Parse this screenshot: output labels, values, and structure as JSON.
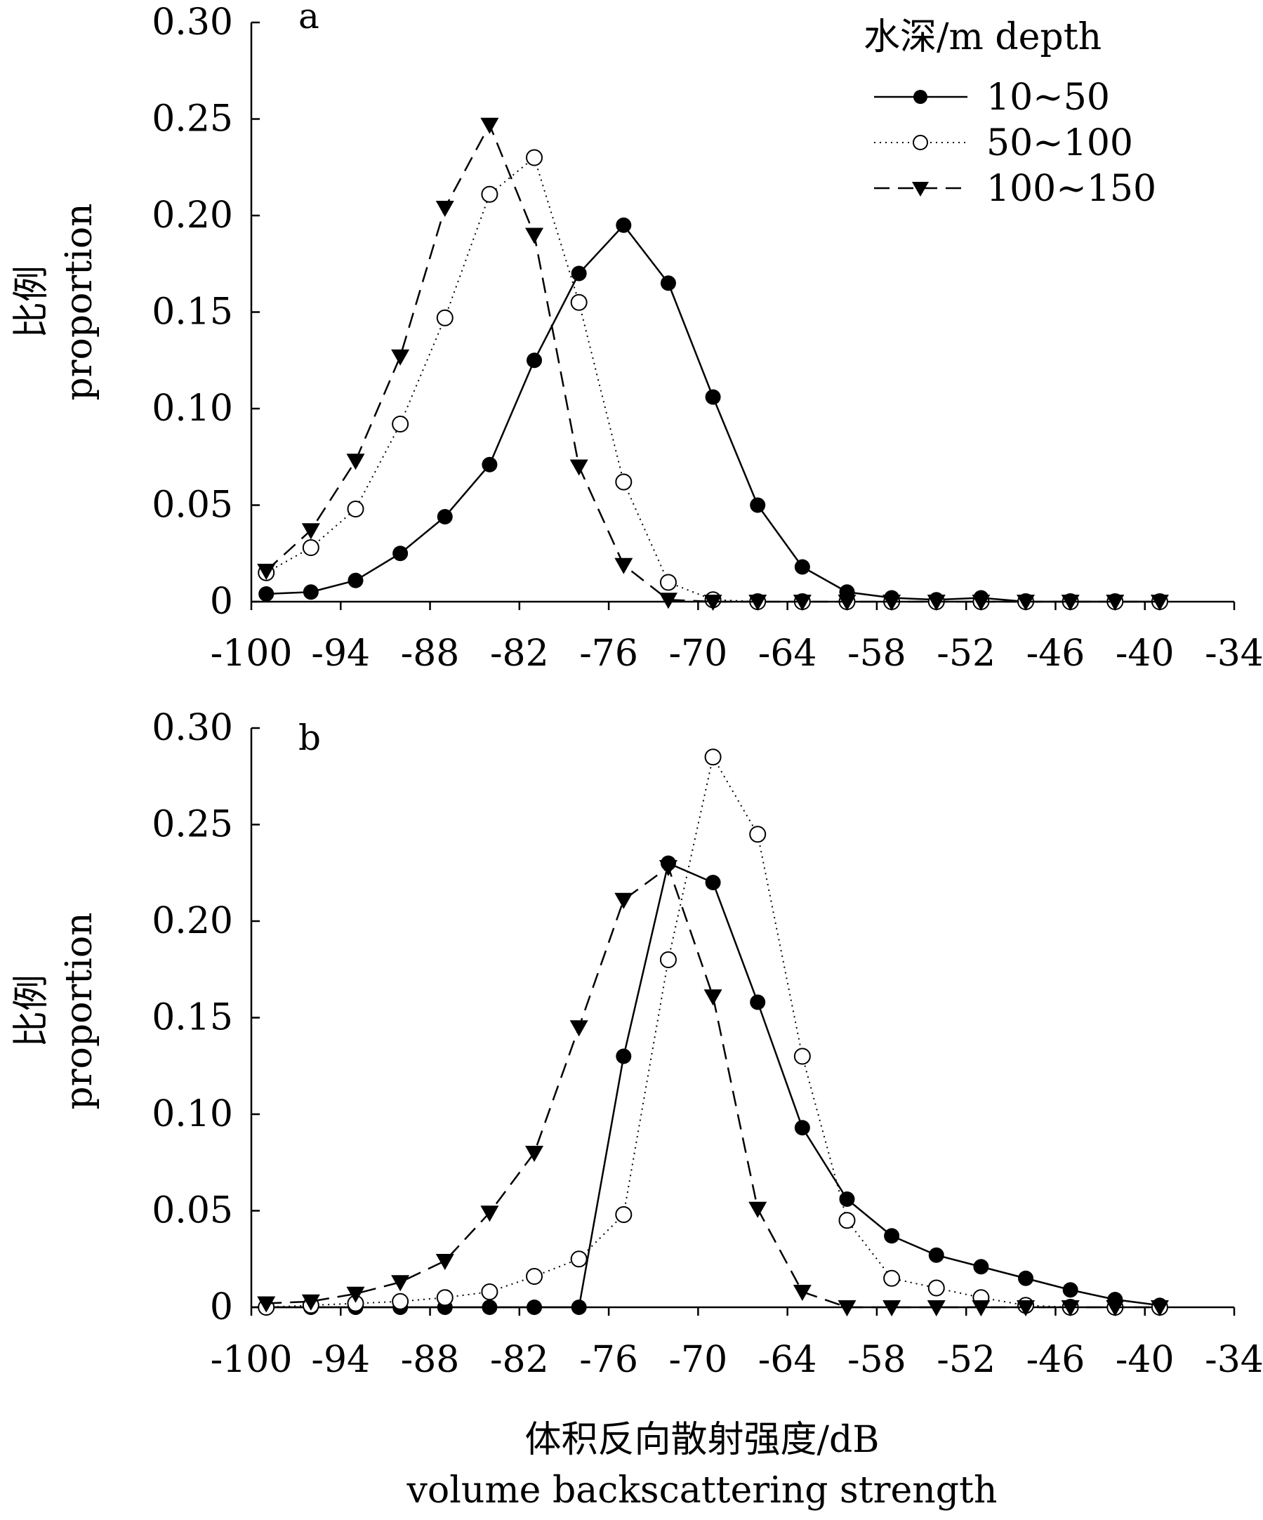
{
  "legend": {
    "title": "水深/m depth",
    "entries": [
      "10~50",
      "50~100",
      "100~150"
    ]
  },
  "y_axis_label": {
    "zh": "比例",
    "en": "proportion"
  },
  "x_axis_label": {
    "zh": "体积反向散射强度/dB",
    "en": "volume backscattering strength"
  },
  "chart_data": [
    {
      "type": "line",
      "panel": "a",
      "x": [
        -99,
        -96,
        -93,
        -90,
        -87,
        -84,
        -81,
        -78,
        -75,
        -72,
        -69,
        -66,
        -63,
        -60,
        -57,
        -54,
        -51,
        -48,
        -45,
        -42,
        -39
      ],
      "x_ticks": [
        "-100",
        "-94",
        "-88",
        "-82",
        "-76",
        "-70",
        "-64",
        "-58",
        "-52",
        "-46",
        "-40",
        "-34"
      ],
      "y_ticks": [
        "0",
        "0.05",
        "0.10",
        "0.15",
        "0.20",
        "0.25",
        "0.30"
      ],
      "xlim": [
        -100,
        -34
      ],
      "ylim": [
        0,
        0.3
      ],
      "legend_position": "top-right",
      "series": [
        {
          "name": "10~50",
          "marker": "filled-circle",
          "line": "solid",
          "values": [
            0.004,
            0.005,
            0.011,
            0.025,
            0.044,
            0.071,
            0.125,
            0.17,
            0.195,
            0.165,
            0.106,
            0.05,
            0.018,
            0.005,
            0.002,
            0.001,
            0.002,
            0.0,
            0.0,
            0.0,
            0.0
          ]
        },
        {
          "name": "50~100",
          "marker": "open-circle",
          "line": "dotted",
          "values": [
            0.015,
            0.028,
            0.048,
            0.092,
            0.147,
            0.211,
            0.23,
            0.155,
            0.062,
            0.01,
            0.001,
            0.0,
            0.0,
            0.0,
            0.0,
            0.0,
            0.0,
            0.0,
            0.0,
            0.0,
            0.0
          ]
        },
        {
          "name": "100~150",
          "marker": "filled-triangle-down",
          "line": "dashed",
          "values": [
            0.016,
            0.037,
            0.073,
            0.127,
            0.204,
            0.247,
            0.19,
            0.07,
            0.019,
            0.001,
            0.0,
            0.0,
            0.0,
            0.0,
            0.0,
            0.0,
            0.0,
            0.0,
            0.0,
            0.0,
            0.0
          ]
        }
      ]
    },
    {
      "type": "line",
      "panel": "b",
      "x": [
        -99,
        -96,
        -93,
        -90,
        -87,
        -84,
        -81,
        -78,
        -75,
        -72,
        -69,
        -66,
        -63,
        -60,
        -57,
        -54,
        -51,
        -48,
        -45,
        -42,
        -39
      ],
      "x_ticks": [
        "-100",
        "-94",
        "-88",
        "-82",
        "-76",
        "-70",
        "-64",
        "-58",
        "-52",
        "-46",
        "-40",
        "-34"
      ],
      "y_ticks": [
        "0",
        "0.05",
        "0.10",
        "0.15",
        "0.20",
        "0.25",
        "0.30"
      ],
      "xlim": [
        -100,
        -34
      ],
      "ylim": [
        0,
        0.3
      ],
      "series": [
        {
          "name": "10~50",
          "marker": "filled-circle",
          "line": "solid",
          "values": [
            0.0,
            0.0,
            0.0,
            0.0,
            0.0,
            0.0,
            0.0,
            0.0,
            0.13,
            0.23,
            0.22,
            0.158,
            0.093,
            0.056,
            0.037,
            0.027,
            0.021,
            0.015,
            0.009,
            0.004,
            0.001
          ]
        },
        {
          "name": "50~100",
          "marker": "open-circle",
          "line": "dotted",
          "values": [
            0.0,
            0.001,
            0.002,
            0.003,
            0.005,
            0.008,
            0.016,
            0.025,
            0.048,
            0.18,
            0.285,
            0.245,
            0.13,
            0.045,
            0.015,
            0.01,
            0.005,
            0.001,
            0.0,
            0.0,
            0.0
          ]
        },
        {
          "name": "100~150",
          "marker": "filled-triangle-down",
          "line": "dashed",
          "values": [
            0.002,
            0.003,
            0.007,
            0.013,
            0.024,
            0.049,
            0.08,
            0.145,
            0.211,
            0.228,
            0.161,
            0.051,
            0.008,
            0.0,
            0.0,
            0.0,
            0.0,
            0.0,
            0.0,
            0.0,
            0.0
          ]
        }
      ]
    }
  ]
}
